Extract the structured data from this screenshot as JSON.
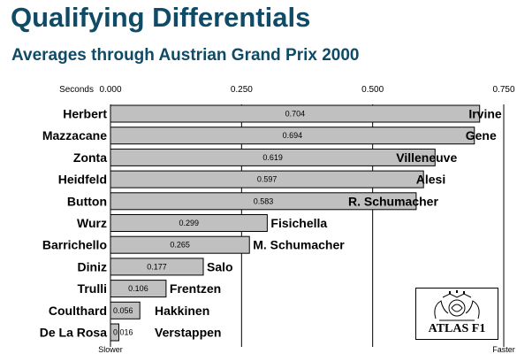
{
  "title": "Qualifying Differentials",
  "subtitle": "Averages through Austrian Grand Prix 2000",
  "chart_data": {
    "type": "bar",
    "orientation": "horizontal",
    "axis_label": "Seconds",
    "xlim": [
      0,
      0.75
    ],
    "ticks": [
      "0.000",
      "0.250",
      "0.500",
      "0.750"
    ],
    "tick_values": [
      0,
      0.25,
      0.5,
      0.75
    ],
    "slower_label": "Slower",
    "faster_label": "Faster",
    "grid": "vertical",
    "rows": [
      {
        "left": "Herbert",
        "right": "Irvine",
        "value": 0.704,
        "label": "0.704"
      },
      {
        "left": "Mazzacane",
        "right": "Gene",
        "value": 0.694,
        "label": "0.694"
      },
      {
        "left": "Zonta",
        "right": "Villeneuve",
        "value": 0.619,
        "label": "0.619"
      },
      {
        "left": "Heidfeld",
        "right": "Alesi",
        "value": 0.597,
        "label": "0.597"
      },
      {
        "left": "Button",
        "right": "R. Schumacher",
        "value": 0.583,
        "label": "0.583"
      },
      {
        "left": "Wurz",
        "right": "Fisichella",
        "value": 0.299,
        "label": "0.299"
      },
      {
        "left": "Barrichello",
        "right": "M. Schumacher",
        "value": 0.265,
        "label": "0.265"
      },
      {
        "left": "Diniz",
        "right": "Salo",
        "value": 0.177,
        "label": "0.177"
      },
      {
        "left": "Trulli",
        "right": "Frentzen",
        "value": 0.106,
        "label": "0.106"
      },
      {
        "left": "Coulthard",
        "right": "Hakkinen",
        "value": 0.056,
        "label": "0.056"
      },
      {
        "left": "De La Rosa",
        "right": "Verstappen",
        "value": 0.016,
        "label": "0.016"
      }
    ],
    "colors": {
      "bar": "#c0c0c0",
      "bar_stroke": "#000000",
      "title": "#0f4a67"
    }
  },
  "logo": {
    "text": "ATLAS F1",
    "icon": "crest-icon"
  }
}
